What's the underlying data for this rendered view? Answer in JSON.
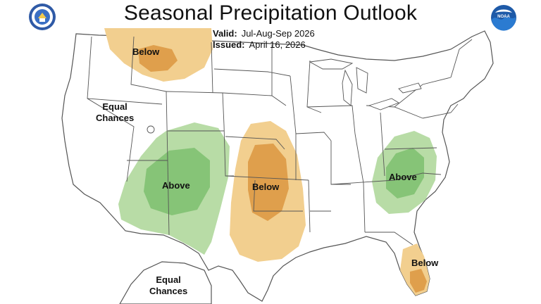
{
  "title": "Seasonal Precipitation Outlook",
  "valid": {
    "label": "Valid:",
    "value": "Jul-Aug-Sep 2026"
  },
  "issued": {
    "label": "Issued:",
    "value": "April 16, 2026"
  },
  "logos": {
    "left": "doc-seal-icon",
    "right": "noaa-logo-icon"
  },
  "regions": [
    {
      "id": "north-rockies",
      "label": "Below",
      "category": "below"
    },
    {
      "id": "southwest",
      "label": "Above",
      "category": "above"
    },
    {
      "id": "southern-plains",
      "label": "Below",
      "category": "below"
    },
    {
      "id": "southeast",
      "label": "Above",
      "category": "above"
    },
    {
      "id": "florida",
      "label": "Below",
      "category": "below"
    }
  ],
  "equal_chances": [
    {
      "line1": "Equal",
      "line2": "Chances"
    },
    {
      "line1": "Equal",
      "line2": "Chances"
    }
  ],
  "colors": {
    "above_light": "#b8dca6",
    "above_dark": "#86c477",
    "below_light": "#f2cf8f",
    "below_dark": "#df9f4c",
    "state_lines": "#555555"
  }
}
